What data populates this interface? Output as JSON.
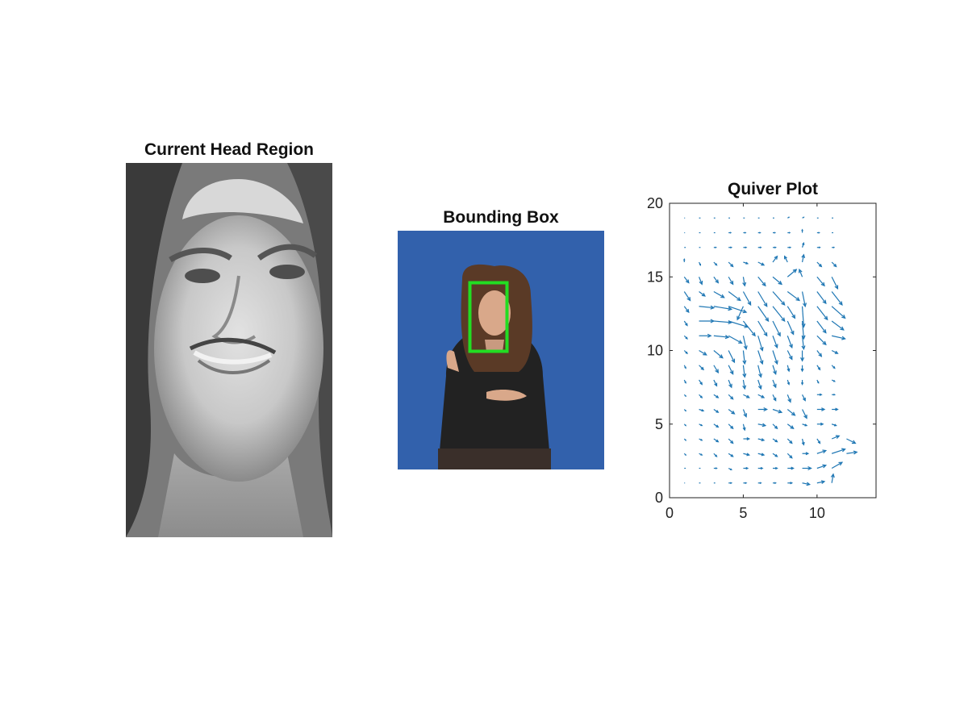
{
  "panels": {
    "head": {
      "title": "Current Head Region"
    },
    "bbox": {
      "title": "Bounding Box",
      "box_color": "#22dd22",
      "background_color": "#2f5fa8"
    },
    "quiver": {
      "title": "Quiver Plot"
    }
  },
  "chart_data": {
    "type": "quiver",
    "title": "Quiver Plot",
    "xlabel": "",
    "ylabel": "",
    "xlim": [
      0,
      14
    ],
    "ylim": [
      0,
      20
    ],
    "xticks": [
      0,
      5,
      10
    ],
    "yticks": [
      0,
      5,
      10,
      15,
      20
    ],
    "grid": false,
    "color": "#1f77b4",
    "vectors": [
      [
        1,
        19,
        0.05,
        0
      ],
      [
        2,
        19,
        0.1,
        0
      ],
      [
        3,
        19,
        0.1,
        0
      ],
      [
        4,
        19,
        0.1,
        0
      ],
      [
        5,
        19,
        0.1,
        0
      ],
      [
        6,
        19,
        0.1,
        0
      ],
      [
        7,
        19,
        0.1,
        0
      ],
      [
        8,
        19,
        0.1,
        0.05
      ],
      [
        9,
        19,
        0.1,
        0.05
      ],
      [
        10,
        19,
        0.1,
        0
      ],
      [
        11,
        19,
        0.1,
        0
      ],
      [
        1,
        18,
        0.05,
        0
      ],
      [
        2,
        18,
        0.1,
        0
      ],
      [
        3,
        18,
        0.1,
        0
      ],
      [
        4,
        18,
        0.15,
        0
      ],
      [
        5,
        18,
        0.15,
        0
      ],
      [
        6,
        18,
        0.15,
        0
      ],
      [
        7,
        18,
        0.15,
        0
      ],
      [
        8,
        18,
        0.15,
        0
      ],
      [
        9,
        18,
        0,
        0.2
      ],
      [
        10,
        18,
        0.15,
        0
      ],
      [
        11,
        18,
        0.1,
        0
      ],
      [
        1,
        17,
        0.1,
        0
      ],
      [
        2,
        17,
        0.1,
        0
      ],
      [
        3,
        17,
        0.15,
        0
      ],
      [
        4,
        17,
        0.2,
        0
      ],
      [
        5,
        17,
        0.2,
        0
      ],
      [
        6,
        17,
        0.2,
        0
      ],
      [
        7,
        17,
        0.2,
        0
      ],
      [
        8,
        17,
        0.2,
        0
      ],
      [
        9,
        17,
        0.1,
        0.3
      ],
      [
        10,
        17,
        0.2,
        0
      ],
      [
        11,
        17,
        0.15,
        0
      ],
      [
        1,
        16,
        0,
        0.2
      ],
      [
        2,
        16,
        0.1,
        -0.2
      ],
      [
        3,
        16,
        0.2,
        -0.2
      ],
      [
        4,
        16,
        0.3,
        -0.3
      ],
      [
        5,
        16,
        0.3,
        -0.1
      ],
      [
        6,
        16,
        0.4,
        -0.2
      ],
      [
        7,
        16,
        0.3,
        0.4
      ],
      [
        8,
        16,
        -0.2,
        0.4
      ],
      [
        9,
        16,
        0.1,
        0.5
      ],
      [
        10,
        16,
        0.3,
        -0.3
      ],
      [
        11,
        16,
        0.3,
        -0.3
      ],
      [
        1,
        15,
        0.3,
        -0.4
      ],
      [
        2,
        15,
        0.2,
        -0.5
      ],
      [
        3,
        15,
        0.3,
        -0.4
      ],
      [
        4,
        15,
        0.3,
        -0.5
      ],
      [
        5,
        15,
        0.1,
        -0.6
      ],
      [
        6,
        15,
        0.5,
        -0.6
      ],
      [
        7,
        15,
        0.6,
        -0.5
      ],
      [
        8,
        15,
        0.6,
        0.5
      ],
      [
        9,
        15,
        -0.2,
        0.5
      ],
      [
        10,
        15,
        0.5,
        -0.6
      ],
      [
        11,
        15,
        0.4,
        -0.8
      ],
      [
        1,
        14,
        0.4,
        -0.6
      ],
      [
        2,
        14,
        0.4,
        -0.3
      ],
      [
        3,
        14,
        0.7,
        -0.4
      ],
      [
        4,
        14,
        0.8,
        -0.6
      ],
      [
        5,
        14,
        0.5,
        -0.9
      ],
      [
        6,
        14,
        0.6,
        -1.0
      ],
      [
        7,
        14,
        0.8,
        -0.9
      ],
      [
        8,
        14,
        0.8,
        -0.6
      ],
      [
        9,
        14,
        0.2,
        -1.0
      ],
      [
        10,
        14,
        0.6,
        -0.8
      ],
      [
        11,
        14,
        0.7,
        -0.9
      ],
      [
        1,
        13,
        0.3,
        -0.4
      ],
      [
        2,
        13,
        1.0,
        -0.1
      ],
      [
        3,
        13,
        1.2,
        -0.2
      ],
      [
        4,
        13,
        1.2,
        -0.4
      ],
      [
        5,
        13,
        -0.4,
        -0.9
      ],
      [
        6,
        13,
        0.7,
        -1.0
      ],
      [
        7,
        13,
        0.8,
        -1.0
      ],
      [
        8,
        13,
        0.5,
        -0.8
      ],
      [
        9,
        13,
        0.1,
        -1.4
      ],
      [
        10,
        13,
        0.7,
        -0.9
      ],
      [
        11,
        13,
        0.9,
        -0.8
      ],
      [
        1,
        12,
        0.2,
        -0.3
      ],
      [
        2,
        12,
        1.0,
        0.0
      ],
      [
        3,
        12,
        1.2,
        -0.1
      ],
      [
        4,
        12,
        1.3,
        -0.4
      ],
      [
        5,
        12,
        0.8,
        -1.0
      ],
      [
        6,
        12,
        0.6,
        -1.0
      ],
      [
        7,
        12,
        0.5,
        -1.0
      ],
      [
        8,
        12,
        0.4,
        -0.9
      ],
      [
        9,
        12,
        0.1,
        -1.2
      ],
      [
        10,
        12,
        0.6,
        -0.8
      ],
      [
        11,
        12,
        0.8,
        -0.6
      ],
      [
        1,
        11,
        0.2,
        -0.2
      ],
      [
        2,
        11,
        0.8,
        0.0
      ],
      [
        3,
        11,
        1.0,
        -0.1
      ],
      [
        4,
        11,
        0.9,
        -0.5
      ],
      [
        5,
        11,
        0.2,
        -0.9
      ],
      [
        6,
        11,
        0.3,
        -1.0
      ],
      [
        7,
        11,
        0.3,
        -0.8
      ],
      [
        8,
        11,
        0.3,
        -0.8
      ],
      [
        9,
        11,
        0.1,
        -0.9
      ],
      [
        10,
        11,
        0.6,
        -0.6
      ],
      [
        11,
        11,
        0.9,
        -0.2
      ],
      [
        1,
        10,
        0.2,
        -0.2
      ],
      [
        2,
        10,
        0.5,
        -0.3
      ],
      [
        3,
        10,
        0.6,
        -0.5
      ],
      [
        4,
        10,
        0.4,
        -0.8
      ],
      [
        5,
        10,
        0.1,
        -0.9
      ],
      [
        6,
        10,
        0.3,
        -0.9
      ],
      [
        7,
        10,
        0.3,
        -0.9
      ],
      [
        8,
        10,
        0.3,
        -0.6
      ],
      [
        9,
        10,
        0.0,
        -0.7
      ],
      [
        10,
        10,
        0.3,
        -0.4
      ],
      [
        11,
        10,
        0.4,
        -0.2
      ],
      [
        1,
        9,
        0.1,
        -0.2
      ],
      [
        2,
        9,
        0.3,
        -0.3
      ],
      [
        3,
        9,
        0.3,
        -0.5
      ],
      [
        4,
        9,
        0.3,
        -0.6
      ],
      [
        5,
        9,
        0.1,
        -0.8
      ],
      [
        6,
        9,
        0.2,
        -0.8
      ],
      [
        7,
        9,
        0.2,
        -0.6
      ],
      [
        8,
        9,
        0.1,
        -0.4
      ],
      [
        9,
        9,
        0.0,
        -0.4
      ],
      [
        10,
        9,
        0.2,
        -0.3
      ],
      [
        11,
        9,
        0.2,
        -0.2
      ],
      [
        1,
        8,
        0.1,
        -0.2
      ],
      [
        2,
        8,
        0.2,
        -0.3
      ],
      [
        3,
        8,
        0.2,
        -0.4
      ],
      [
        4,
        8,
        0.2,
        -0.5
      ],
      [
        5,
        8,
        0.1,
        -0.6
      ],
      [
        6,
        8,
        0.2,
        -0.6
      ],
      [
        7,
        8,
        0.2,
        -0.5
      ],
      [
        8,
        8,
        0.1,
        -0.3
      ],
      [
        9,
        8,
        0.0,
        -0.3
      ],
      [
        10,
        8,
        0.1,
        -0.2
      ],
      [
        11,
        8,
        0.2,
        -0.1
      ],
      [
        1,
        7,
        0.1,
        -0.1
      ],
      [
        2,
        7,
        0.2,
        -0.2
      ],
      [
        3,
        7,
        0.3,
        -0.2
      ],
      [
        4,
        7,
        0.3,
        -0.3
      ],
      [
        5,
        7,
        0.4,
        -0.2
      ],
      [
        6,
        7,
        0.4,
        -0.2
      ],
      [
        7,
        7,
        0.2,
        -0.4
      ],
      [
        8,
        7,
        0.2,
        -0.5
      ],
      [
        9,
        7,
        0.2,
        -0.4
      ],
      [
        10,
        7,
        0.3,
        0.0
      ],
      [
        11,
        7,
        0.2,
        0.0
      ],
      [
        1,
        6,
        0.1,
        -0.1
      ],
      [
        2,
        6,
        0.3,
        -0.1
      ],
      [
        3,
        6,
        0.3,
        -0.2
      ],
      [
        4,
        6,
        0.4,
        -0.3
      ],
      [
        5,
        6,
        0.2,
        -0.5
      ],
      [
        6,
        6,
        0.6,
        0.0
      ],
      [
        7,
        6,
        0.6,
        -0.2
      ],
      [
        8,
        6,
        0.5,
        -0.4
      ],
      [
        9,
        6,
        0.3,
        -0.6
      ],
      [
        10,
        6,
        0.5,
        0.0
      ],
      [
        11,
        6,
        0.4,
        0.0
      ],
      [
        1,
        5,
        0.1,
        -0.1
      ],
      [
        2,
        5,
        0.2,
        -0.1
      ],
      [
        3,
        5,
        0.3,
        -0.2
      ],
      [
        4,
        5,
        0.3,
        -0.3
      ],
      [
        5,
        5,
        0.1,
        -0.4
      ],
      [
        6,
        5,
        0.5,
        -0.1
      ],
      [
        7,
        5,
        0.3,
        -0.3
      ],
      [
        8,
        5,
        0.4,
        -0.3
      ],
      [
        9,
        5,
        0.3,
        -0.1
      ],
      [
        10,
        5,
        0.4,
        0.0
      ],
      [
        11,
        5,
        0.3,
        -0.1
      ],
      [
        1,
        4,
        0.1,
        -0.1
      ],
      [
        2,
        4,
        0.2,
        -0.1
      ],
      [
        3,
        4,
        0.3,
        -0.2
      ],
      [
        4,
        4,
        0.3,
        -0.3
      ],
      [
        5,
        4,
        0.4,
        0.0
      ],
      [
        6,
        4,
        0.4,
        -0.1
      ],
      [
        7,
        4,
        0.3,
        -0.2
      ],
      [
        8,
        4,
        0.3,
        -0.3
      ],
      [
        9,
        4,
        0.1,
        -0.4
      ],
      [
        10,
        4,
        0.2,
        -0.3
      ],
      [
        11,
        4,
        0.5,
        0.2
      ],
      [
        12,
        4,
        0.6,
        -0.3
      ],
      [
        1,
        3,
        0.1,
        -0.1
      ],
      [
        2,
        3,
        0.2,
        -0.1
      ],
      [
        3,
        3,
        0.2,
        -0.2
      ],
      [
        4,
        3,
        0.3,
        -0.2
      ],
      [
        5,
        3,
        0.4,
        -0.1
      ],
      [
        6,
        3,
        0.4,
        -0.1
      ],
      [
        7,
        3,
        0.3,
        -0.2
      ],
      [
        8,
        3,
        0.3,
        -0.3
      ],
      [
        9,
        3,
        0.4,
        0.0
      ],
      [
        10,
        3,
        0.6,
        0.2
      ],
      [
        11,
        3,
        0.9,
        0.3
      ],
      [
        12,
        3,
        0.7,
        0.1
      ],
      [
        1,
        2,
        0.1,
        0.0
      ],
      [
        2,
        2,
        0.1,
        0.0
      ],
      [
        3,
        2,
        0.2,
        0.0
      ],
      [
        4,
        2,
        0.2,
        -0.1
      ],
      [
        5,
        2,
        0.3,
        0.0
      ],
      [
        6,
        2,
        0.3,
        0.0
      ],
      [
        7,
        2,
        0.3,
        0.0
      ],
      [
        8,
        2,
        0.4,
        0.0
      ],
      [
        9,
        2,
        0.6,
        0.0
      ],
      [
        10,
        2,
        0.6,
        0.2
      ],
      [
        11,
        2,
        0.7,
        0.4
      ],
      [
        1,
        1,
        0.05,
        0.0
      ],
      [
        2,
        1,
        0.1,
        0.0
      ],
      [
        3,
        1,
        0.1,
        0.0
      ],
      [
        4,
        1,
        0.2,
        0.0
      ],
      [
        5,
        1,
        0.2,
        0.0
      ],
      [
        6,
        1,
        0.2,
        0.0
      ],
      [
        7,
        1,
        0.2,
        0.0
      ],
      [
        8,
        1,
        0.3,
        0.0
      ],
      [
        9,
        1,
        0.5,
        -0.1
      ],
      [
        10,
        1,
        0.5,
        0.1
      ],
      [
        11,
        1,
        0.1,
        0.6
      ]
    ]
  }
}
